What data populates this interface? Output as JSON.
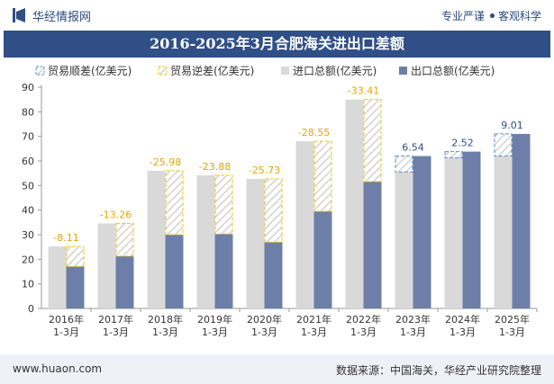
{
  "header": {
    "site_name": "华经情报网",
    "slogan_left": "专业严谨",
    "slogan_right": "客观科学"
  },
  "footer": {
    "url": "www.huaon.com",
    "source": "数据来源：中国海关，华经产业研究院整理"
  },
  "colors": {
    "brand": "#2f4f86",
    "import_bar": "#d9d9d9",
    "export_bar": "#6d7fa8",
    "deficit_outline": "#f5c518",
    "surplus_outline": "#5b8fc7",
    "axis_text": "#333333"
  },
  "chart_data": {
    "type": "bar",
    "title": "2016-2025年3月合肥海关进出口差额",
    "categories": [
      "2016年 1-3月",
      "2017年 1-3月",
      "2018年 1-3月",
      "2019年 1-3月",
      "2020年 1-3月",
      "2021年 1-3月",
      "2022年 1-3月",
      "2023年 1-3月",
      "2024年 1-3月",
      "2025年 1-3月"
    ],
    "ylim": [
      0,
      90
    ],
    "yticks": [
      0,
      10,
      20,
      30,
      40,
      50,
      60,
      70,
      80,
      90
    ],
    "grid": false,
    "legend_position": "top",
    "legend": [
      "贸易顺差(亿美元)",
      "贸易逆差(亿美元)",
      "进口总额(亿美元)",
      "出口总额(亿美元)"
    ],
    "series": [
      {
        "name": "进口总额(亿美元)",
        "values": [
          25.2,
          34.6,
          56.0,
          54.2,
          52.7,
          68.0,
          85.0,
          55.5,
          61.3,
          62.0
        ]
      },
      {
        "name": "出口总额(亿美元)",
        "values": [
          17.1,
          21.3,
          30.0,
          30.3,
          27.0,
          39.5,
          51.6,
          62.0,
          63.8,
          71.0
        ]
      }
    ],
    "balance_labels": [
      "-8.11",
      "-13.26",
      "-25.98",
      "-23.88",
      "-25.73",
      "-28.55",
      "-33.41",
      "6.54",
      "2.52",
      "9.01"
    ]
  }
}
